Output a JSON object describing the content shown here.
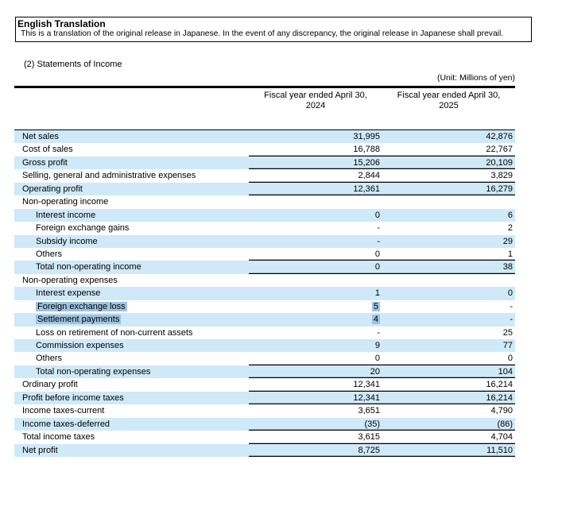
{
  "notice": {
    "title": "English Translation",
    "body": "This is a translation of the original release in Japanese. In the event of any discrepancy, the original release in Japanese shall prevail."
  },
  "section_title": "(2) Statements of Income",
  "unit_label": "(Unit: Millions of yen)",
  "colors": {
    "row_shade": "#cfe9f8",
    "selection_highlight": "#9ec3e0",
    "rule": "#000000"
  },
  "table": {
    "columns": [
      {
        "line1": "Fiscal year ended April 30,",
        "line2": "2024"
      },
      {
        "line1": "Fiscal year ended April 30,",
        "line2": "2025"
      }
    ],
    "rows": [
      {
        "label": "Net sales",
        "v1": "31,995",
        "v2": "42,876",
        "indent": 0,
        "shaded": true,
        "rule_below": false,
        "highlight": false
      },
      {
        "label": "Cost of sales",
        "v1": "16,788",
        "v2": "22,767",
        "indent": 0,
        "shaded": false,
        "rule_below": true,
        "highlight": false
      },
      {
        "label": "Gross profit",
        "v1": "15,206",
        "v2": "20,109",
        "indent": 0,
        "shaded": true,
        "rule_below": true,
        "highlight": false
      },
      {
        "label": "Selling, general and administrative expenses",
        "v1": "2,844",
        "v2": "3,829",
        "indent": 0,
        "shaded": false,
        "rule_below": true,
        "highlight": false
      },
      {
        "label": "Operating profit",
        "v1": "12,361",
        "v2": "16,279",
        "indent": 0,
        "shaded": true,
        "rule_below": true,
        "highlight": false
      },
      {
        "label": "Non-operating income",
        "v1": "",
        "v2": "",
        "indent": 0,
        "shaded": false,
        "rule_below": false,
        "highlight": false
      },
      {
        "label": "Interest income",
        "v1": "0",
        "v2": "6",
        "indent": 1,
        "shaded": true,
        "rule_below": false,
        "highlight": false
      },
      {
        "label": "Foreign exchange gains",
        "v1": "-",
        "v2": "2",
        "indent": 1,
        "shaded": false,
        "rule_below": false,
        "highlight": false
      },
      {
        "label": "Subsidy income",
        "v1": "-",
        "v2": "29",
        "indent": 1,
        "shaded": true,
        "rule_below": false,
        "highlight": false
      },
      {
        "label": "Others",
        "v1": "0",
        "v2": "1",
        "indent": 1,
        "shaded": false,
        "rule_below": true,
        "highlight": false
      },
      {
        "label": "Total non-operating income",
        "v1": "0",
        "v2": "38",
        "indent": 1,
        "shaded": true,
        "rule_below": true,
        "highlight": false
      },
      {
        "label": "Non-operating expenses",
        "v1": "",
        "v2": "",
        "indent": 0,
        "shaded": false,
        "rule_below": false,
        "highlight": false
      },
      {
        "label": "Interest expense",
        "v1": "1",
        "v2": "0",
        "indent": 1,
        "shaded": true,
        "rule_below": false,
        "highlight": false
      },
      {
        "label": "Foreign exchange loss",
        "v1": "5",
        "v2": "-",
        "indent": 1,
        "shaded": false,
        "rule_below": false,
        "highlight": true
      },
      {
        "label": "Settlement payments",
        "v1": "4",
        "v2": "-",
        "indent": 1,
        "shaded": true,
        "rule_below": false,
        "highlight": true
      },
      {
        "label": "Loss on retirement of non-current assets",
        "v1": "-",
        "v2": "25",
        "indent": 1,
        "shaded": false,
        "rule_below": false,
        "highlight": false
      },
      {
        "label": "Commission expenses",
        "v1": "9",
        "v2": "77",
        "indent": 1,
        "shaded": true,
        "rule_below": false,
        "highlight": false
      },
      {
        "label": "Others",
        "v1": "0",
        "v2": "0",
        "indent": 1,
        "shaded": false,
        "rule_below": true,
        "highlight": false
      },
      {
        "label": "Total non-operating expenses",
        "v1": "20",
        "v2": "104",
        "indent": 1,
        "shaded": true,
        "rule_below": true,
        "highlight": false
      },
      {
        "label": "Ordinary profit",
        "v1": "12,341",
        "v2": "16,214",
        "indent": 0,
        "shaded": false,
        "rule_below": true,
        "highlight": false
      },
      {
        "label": "Profit before income taxes",
        "v1": "12,341",
        "v2": "16,214",
        "indent": 0,
        "shaded": true,
        "rule_below": true,
        "highlight": false
      },
      {
        "label": "Income taxes-current",
        "v1": "3,651",
        "v2": "4,790",
        "indent": 0,
        "shaded": false,
        "rule_below": false,
        "highlight": false
      },
      {
        "label": "Income taxes-deferred",
        "v1": "(35)",
        "v2": "(86)",
        "indent": 0,
        "shaded": true,
        "rule_below": true,
        "highlight": false
      },
      {
        "label": "Total income taxes",
        "v1": "3,615",
        "v2": "4,704",
        "indent": 0,
        "shaded": false,
        "rule_below": true,
        "highlight": false
      },
      {
        "label": "Net profit",
        "v1": "8,725",
        "v2": "11,510",
        "indent": 0,
        "shaded": true,
        "rule_below": true,
        "highlight": false
      }
    ]
  }
}
